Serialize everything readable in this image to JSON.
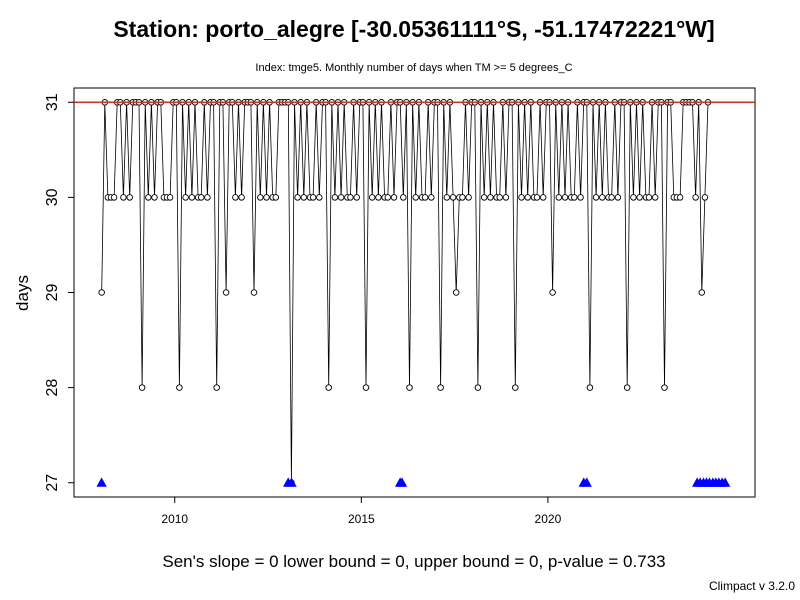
{
  "chart_data": {
    "type": "line",
    "title": "Station: porto_alegre [-30.05361111°S, -51.17472221°W]",
    "subtitle": "Index: tmge5. Monthly number of days when TM >= 5 degrees_C",
    "xlabel": "",
    "ylabel": "days",
    "xlim": [
      2007.3,
      2025.55
    ],
    "ylim": [
      26.85,
      31.15
    ],
    "x_ticks": [
      2010,
      2015,
      2020
    ],
    "y_ticks": [
      27,
      28,
      29,
      30,
      31
    ],
    "start": [
      2008,
      1
    ],
    "values": [
      29,
      31,
      30,
      30,
      30,
      31,
      31,
      30,
      31,
      30,
      31,
      31,
      31,
      28,
      31,
      30,
      31,
      30,
      31,
      31,
      30,
      30,
      30,
      31,
      31,
      28,
      31,
      30,
      31,
      30,
      31,
      30,
      30,
      31,
      30,
      31,
      31,
      28,
      31,
      31,
      29,
      31,
      31,
      30,
      31,
      30,
      31,
      31,
      31,
      29,
      31,
      30,
      31,
      30,
      31,
      30,
      30,
      31,
      31,
      31,
      31,
      27,
      31,
      30,
      31,
      30,
      31,
      30,
      30,
      31,
      30,
      31,
      31,
      28,
      31,
      30,
      31,
      30,
      31,
      30,
      30,
      31,
      30,
      31,
      31,
      28,
      31,
      30,
      31,
      30,
      31,
      30,
      30,
      31,
      30,
      31,
      31,
      30,
      31,
      28,
      31,
      30,
      31,
      30,
      30,
      31,
      30,
      31,
      31,
      28,
      31,
      30,
      31,
      30,
      29,
      30,
      30,
      31,
      30,
      31,
      31,
      28,
      31,
      30,
      31,
      30,
      31,
      30,
      30,
      31,
      30,
      31,
      31,
      28,
      31,
      30,
      31,
      30,
      31,
      30,
      30,
      31,
      30,
      31,
      31,
      29,
      31,
      30,
      31,
      30,
      31,
      30,
      30,
      31,
      30,
      31,
      31,
      28,
      31,
      30,
      31,
      30,
      31,
      30,
      30,
      31,
      30,
      31,
      31,
      28,
      31,
      30,
      31,
      30,
      31,
      30,
      30,
      31,
      30,
      31,
      31,
      28,
      31,
      31,
      30,
      30,
      30,
      31,
      31,
      31,
      31,
      30,
      31,
      29,
      30,
      31
    ],
    "missing_marker_years": [
      2008.04,
      2013.04,
      2013.13,
      2016.04,
      2016.09,
      2020.96,
      2021.04,
      2024.0,
      2024.08,
      2024.17,
      2024.25,
      2024.33,
      2024.42,
      2024.5,
      2024.58,
      2024.67,
      2024.75
    ],
    "reference_line": 31,
    "colors": {
      "series": "#000000",
      "reference": "#c0392b",
      "markers": "#0000ff"
    }
  },
  "footer": {
    "stats": "Sen's slope = 0   lower bound = 0,   upper bound = 0,   p-value = 0.733",
    "version": "Climpact v 3.2.0"
  }
}
